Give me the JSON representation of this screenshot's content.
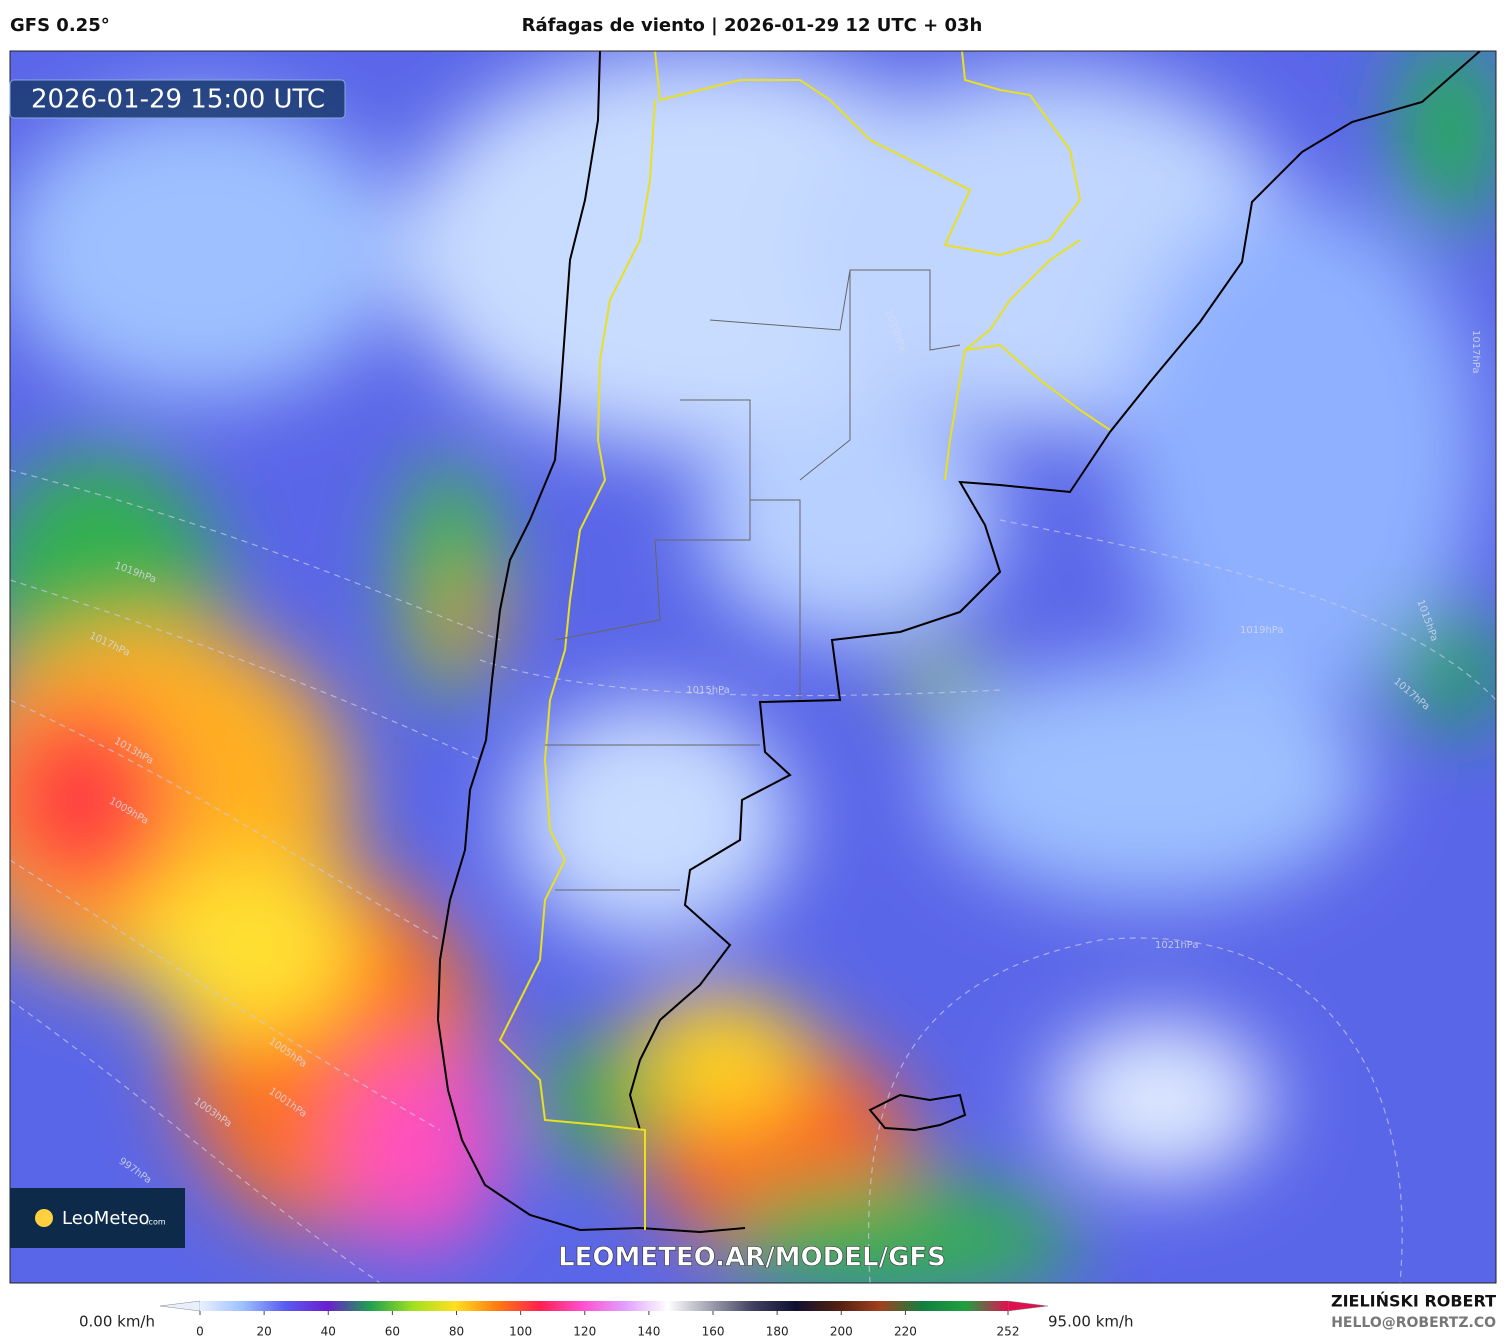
{
  "header": {
    "model": "GFS 0.25°",
    "title": "Ráfagas de viento | 2026-01-29 12 UTC + 03h"
  },
  "map": {
    "timestamp": "2026-01-29 15:00 UTC",
    "watermark": "LEOMETEO.AR/MODEL/GFS",
    "logo": {
      "name": "LeoMeteo",
      "suffix": ".com"
    },
    "isobar_labels": [
      "1019hPa",
      "1017hPa",
      "1015hPa",
      "1013hPa",
      "1009hPa",
      "1005hPa",
      "1003hPa",
      "1001hPa",
      "997hPa",
      "1019hPa",
      "1015hPa",
      "1017hPa",
      "1021hPa",
      "1019hPa",
      "1017hPa"
    ]
  },
  "colorbar": {
    "min_label": "0.00 km/h",
    "max_label": "95.00 km/h",
    "lim": [
      0,
      252
    ],
    "ticks": [
      0,
      20,
      40,
      60,
      80,
      100,
      120,
      140,
      160,
      180,
      200,
      220,
      252
    ],
    "colors": [
      "#e8f0ff",
      "#9ec0ff",
      "#5a5cf0",
      "#6a1fd0",
      "#1fa050",
      "#9fe020",
      "#ffe020",
      "#ff7a10",
      "#ff2050",
      "#ff50d0",
      "#e0a0ff",
      "#ffffff",
      "#a0a0b0",
      "#404060",
      "#101030",
      "#502010",
      "#a04020",
      "#108040",
      "#20a040",
      "#e01050"
    ]
  },
  "footer": {
    "author": "ZIELIŃSKI ROBERT",
    "email": "HELLO@ROBERTZ.CO"
  }
}
